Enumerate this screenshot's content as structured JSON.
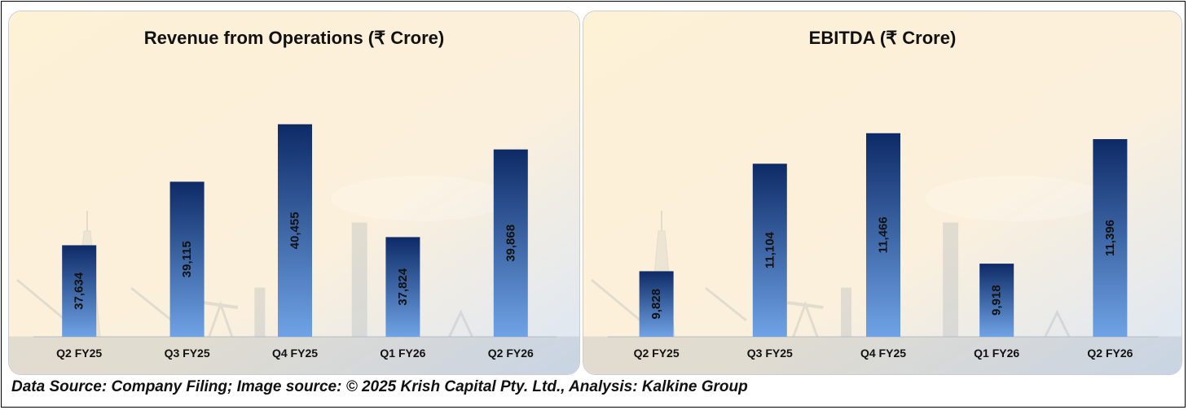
{
  "chart_data": [
    {
      "type": "bar",
      "title": "Revenue from Operations (₹ Crore)",
      "categories": [
        "Q2 FY25",
        "Q3 FY25",
        "Q4 FY25",
        "Q1 FY26",
        "Q2 FY26"
      ],
      "values": [
        37634,
        39115,
        40455,
        37824,
        39868
      ],
      "value_labels": [
        "37,634",
        "39,115",
        "40,455",
        "37,824",
        "39,868"
      ],
      "ylim": [
        35500,
        41000
      ],
      "grid": false,
      "legend": "none",
      "xlabel": "",
      "ylabel": ""
    },
    {
      "type": "bar",
      "title": "EBITDA (₹ Crore)",
      "categories": [
        "Q2 FY25",
        "Q3 FY25",
        "Q4 FY25",
        "Q1 FY26",
        "Q2 FY26"
      ],
      "values": [
        9828,
        11104,
        11466,
        9918,
        11396
      ],
      "value_labels": [
        "9,828",
        "11,104",
        "11,466",
        "9,918",
        "11,396"
      ],
      "ylim": [
        9050,
        11850
      ],
      "grid": false,
      "legend": "none",
      "xlabel": "",
      "ylabel": ""
    }
  ],
  "footer": {
    "text": "Data Source: Company Filing; Image source: © 2025 Krish Capital Pty. Ltd., Analysis: Kalkine Group"
  },
  "colors": {
    "bar_top": "#0d2a66",
    "bar_bottom": "#6fa3e6",
    "label_text": "#111111",
    "background_warm": "#fdf1d6",
    "background_cool": "#dbe6f5"
  }
}
